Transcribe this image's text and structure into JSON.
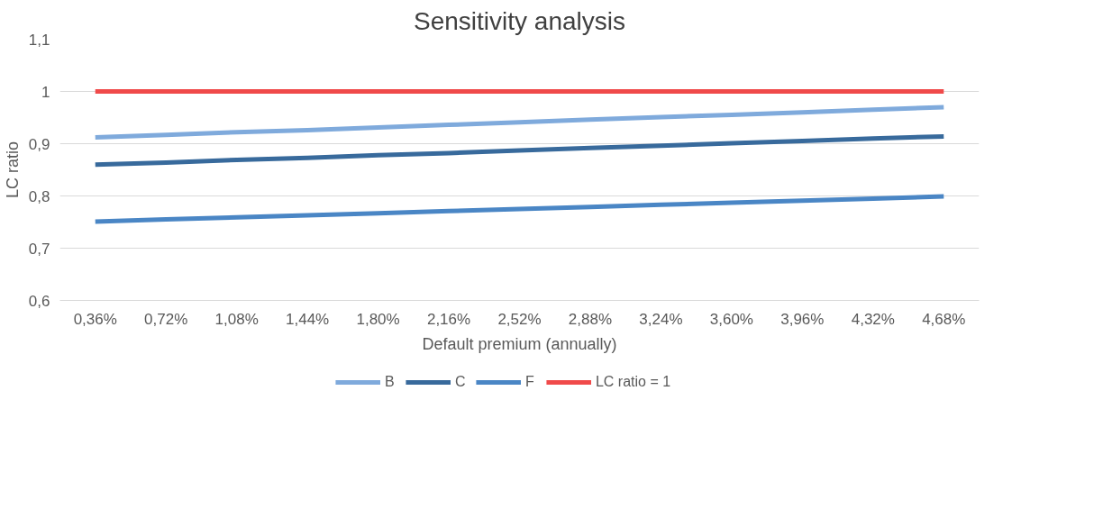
{
  "chart_data": {
    "type": "line",
    "title": "Sensitivity analysis",
    "xlabel": "Default premium (annually)",
    "ylabel": "LC ratio",
    "categories": [
      "0,36%",
      "0,72%",
      "1,08%",
      "1,44%",
      "1,80%",
      "2,16%",
      "2,52%",
      "2,88%",
      "3,24%",
      "3,60%",
      "3,96%",
      "4,32%",
      "4,68%"
    ],
    "series": [
      {
        "name": "B",
        "color": "#7faadc",
        "values": [
          0.912,
          0.917,
          0.922,
          0.926,
          0.931,
          0.936,
          0.941,
          0.946,
          0.951,
          0.955,
          0.96,
          0.965,
          0.97
        ]
      },
      {
        "name": "C",
        "color": "#386a9c",
        "values": [
          0.86,
          0.864,
          0.869,
          0.873,
          0.878,
          0.882,
          0.887,
          0.892,
          0.896,
          0.901,
          0.905,
          0.91,
          0.914
        ]
      },
      {
        "name": "F",
        "color": "#4a86c5",
        "values": [
          0.751,
          0.755,
          0.759,
          0.763,
          0.767,
          0.771,
          0.775,
          0.779,
          0.783,
          0.787,
          0.791,
          0.795,
          0.799
        ]
      },
      {
        "name": "LC ratio = 1",
        "color": "#f04a4a",
        "values": [
          1,
          1,
          1,
          1,
          1,
          1,
          1,
          1,
          1,
          1,
          1,
          1,
          1
        ]
      }
    ],
    "ylim": [
      0.6,
      1.1
    ],
    "yticks": [
      {
        "value": 0.6,
        "label": "0,6"
      },
      {
        "value": 0.7,
        "label": "0,7"
      },
      {
        "value": 0.8,
        "label": "0,8"
      },
      {
        "value": 0.9,
        "label": "0,9"
      },
      {
        "value": 1,
        "label": "1"
      },
      {
        "value": 1.1,
        "label": "1,1"
      }
    ],
    "grid": "y",
    "legend": "bottom",
    "marker": "none",
    "line_style": "solid"
  }
}
